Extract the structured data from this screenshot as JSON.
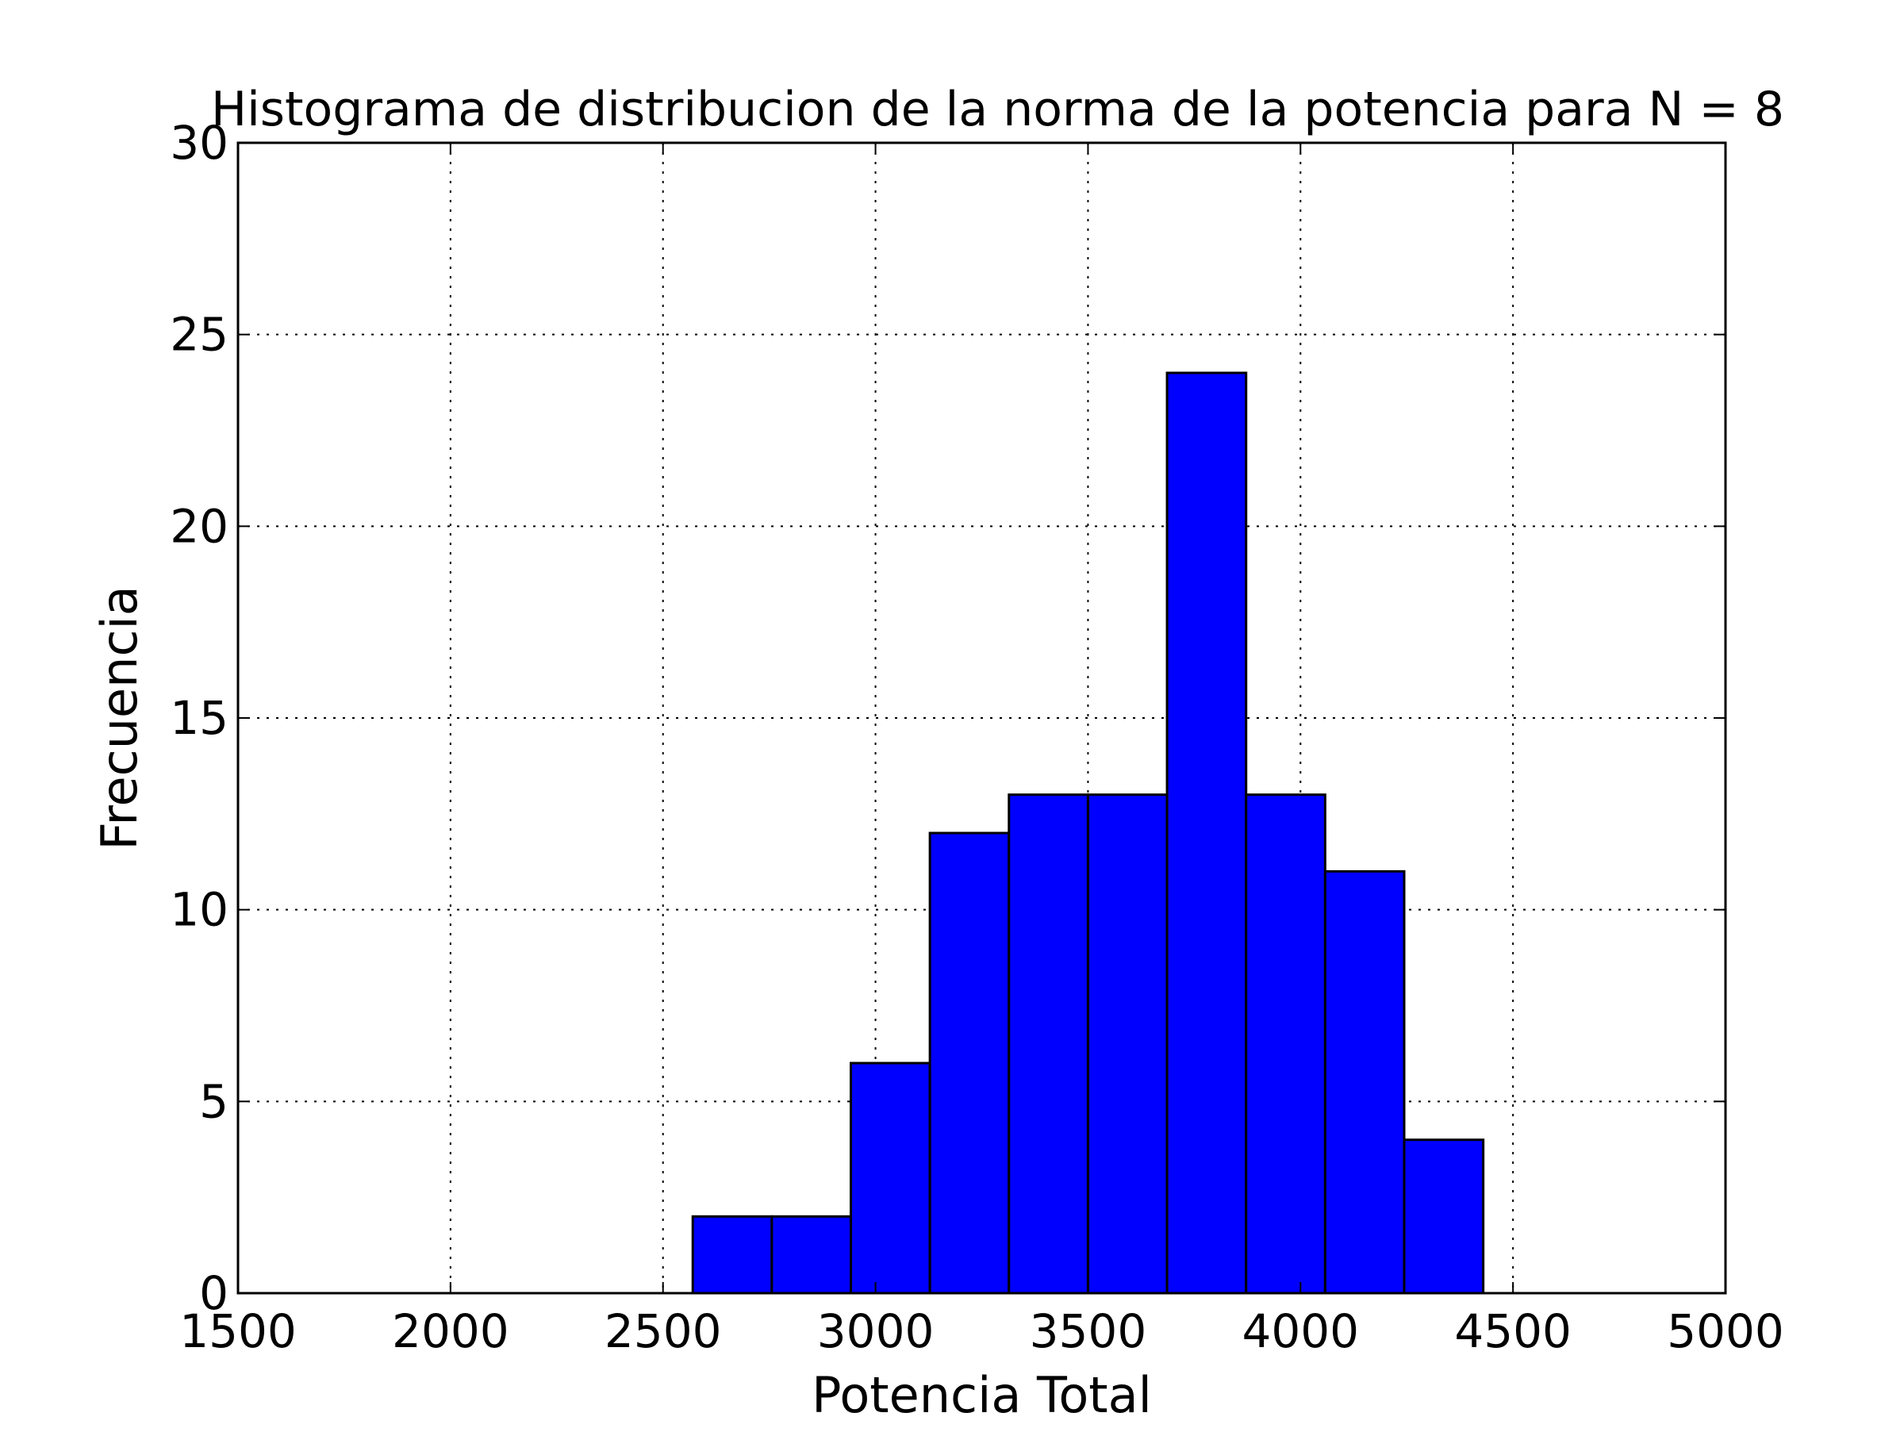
{
  "chart_data": {
    "type": "bar",
    "subtype": "histogram",
    "title": "Histograma de distribucion de la norma de la potencia para N = 8",
    "xlabel": "Potencia Total",
    "ylabel": "Frecuencia",
    "xlim": [
      1500,
      5000
    ],
    "ylim": [
      0,
      30
    ],
    "xticks": [
      1500,
      2000,
      2500,
      3000,
      3500,
      4000,
      4500,
      5000
    ],
    "yticks": [
      0,
      5,
      10,
      15,
      20,
      25,
      30
    ],
    "bin_edges": [
      2570,
      2756,
      2942,
      3128,
      3314,
      3500,
      3686,
      3872,
      4058,
      4244,
      4430
    ],
    "values": [
      2,
      2,
      6,
      12,
      13,
      13,
      24,
      13,
      11,
      4
    ],
    "bar_color": "#0000ff",
    "edge_color": "#000000",
    "grid": true,
    "grid_style": "dotted",
    "legend": null
  }
}
